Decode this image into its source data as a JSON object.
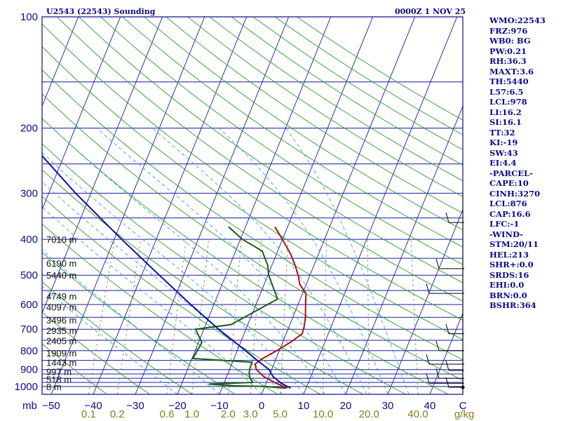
{
  "title": "U2543 (22543) Sounding",
  "datetime": "0000Z  1 NOV 25",
  "chart_data": {
    "type": "skew-t",
    "title": "U2543 (22543) Sounding",
    "xlabel": "C",
    "ylabel": "mb",
    "pressure_levels": [
      100,
      200,
      300,
      400,
      500,
      600,
      700,
      800,
      900,
      1000
    ],
    "pressure_ticks": [
      "100",
      "200",
      "300",
      "400",
      "500",
      "600",
      "700",
      "800",
      "900",
      "1000"
    ],
    "temperature_ticks": [
      -50,
      -40,
      -30,
      -20,
      -10,
      0,
      10,
      20,
      30,
      40
    ],
    "temperature_tick_labels": [
      "−50",
      "−40",
      "−30",
      "−20",
      "−10",
      "0",
      "10",
      "20",
      "30",
      "40"
    ],
    "xlim": [
      -50,
      50
    ],
    "ylim": [
      1050,
      100
    ],
    "mixing_ratio_labels": [
      {
        "text": "0.1",
        "value": 0.1
      },
      {
        "text": "0.2",
        "value": 0.2
      },
      {
        "text": "0.6",
        "value": 0.6
      },
      {
        "text": "1.0",
        "value": 1.0
      },
      {
        "text": "2.0",
        "value": 2.0
      },
      {
        "text": "3.0",
        "value": 3.0
      },
      {
        "text": "5.0",
        "value": 5.0
      },
      {
        "text": "10.0",
        "value": 10.0
      },
      {
        "text": "20.0",
        "value": 20.0
      },
      {
        "text": "40.0",
        "value": 40.0
      }
    ],
    "mixing_ratio_unit": "g/kg",
    "height_labels": [
      {
        "p": 400,
        "text": "7010 m"
      },
      {
        "p": 464,
        "text": "6190 m"
      },
      {
        "p": 500,
        "text": "5440 m"
      },
      {
        "p": 570,
        "text": "4749 m"
      },
      {
        "p": 610,
        "text": "4097 m"
      },
      {
        "p": 660,
        "text": "3496 m"
      },
      {
        "p": 705,
        "text": "2935 m"
      },
      {
        "p": 752,
        "text": "2405 m"
      },
      {
        "p": 812,
        "text": "1909 m"
      },
      {
        "p": 860,
        "text": "1443 m"
      },
      {
        "p": 910,
        "text": "997 m"
      },
      {
        "p": 955,
        "text": "518 m"
      },
      {
        "p": 1000,
        "text": "8 m"
      }
    ],
    "series": [
      {
        "name": "Temperature",
        "color": "#b01010",
        "points": [
          [
            1010,
            5.5
          ],
          [
            980,
            2.4
          ],
          [
            940,
            -1.2
          ],
          [
            900,
            -3.6
          ],
          [
            870,
            -4.5
          ],
          [
            840,
            -3.2
          ],
          [
            800,
            -0.6
          ],
          [
            760,
            1.8
          ],
          [
            720,
            3.8
          ],
          [
            690,
            3.6
          ],
          [
            650,
            3.0
          ],
          [
            600,
            1.8
          ],
          [
            560,
            0.8
          ],
          [
            530,
            -1.5
          ],
          [
            500,
            -2.8
          ],
          [
            470,
            -4.5
          ],
          [
            440,
            -6.5
          ],
          [
            400,
            -10.0
          ],
          [
            370,
            -13.0
          ]
        ]
      },
      {
        "name": "Dewpoint",
        "color": "#1a5a1a",
        "points": [
          [
            1010,
            5.2
          ],
          [
            1000,
            -0.3
          ],
          [
            995,
            -7.5
          ],
          [
            985,
            -13.5
          ],
          [
            975,
            -3.2
          ],
          [
            950,
            -4.3
          ],
          [
            920,
            -5.0
          ],
          [
            890,
            -5.3
          ],
          [
            860,
            -5.4
          ],
          [
            840,
            -19.8
          ],
          [
            760,
            -19.2
          ],
          [
            700,
            -22.0
          ],
          [
            680,
            -14.0
          ],
          [
            580,
            -5.4
          ],
          [
            500,
            -9.8
          ],
          [
            470,
            -11.0
          ],
          [
            430,
            -13.7
          ],
          [
            400,
            -19.5
          ],
          [
            370,
            -24.0
          ]
        ]
      },
      {
        "name": "Parcel",
        "color": "#10109a",
        "points": [
          [
            1010,
            6.3
          ],
          [
            980,
            3.6
          ],
          [
            940,
            1.0
          ],
          [
            900,
            -0.6
          ],
          [
            850,
            -4.3
          ],
          [
            800,
            -8.0
          ],
          [
            700,
            -16.5
          ],
          [
            600,
            -25.5
          ],
          [
            500,
            -35.8
          ],
          [
            400,
            -48.2
          ],
          [
            300,
            -63.6
          ],
          [
            200,
            -83.8
          ],
          [
            160,
            -94.5
          ],
          [
            120,
            -106.5
          ]
        ]
      }
    ],
    "wind_barbs_at_pressures": [
      360,
      480,
      560,
      720,
      800,
      870,
      905,
      950,
      980,
      1005
    ]
  },
  "indices": [
    {
      "label": "WMO:22543"
    },
    {
      "label": "FRZ:976"
    },
    {
      "label": "WB0: BG"
    },
    {
      "label": "PW:0.21"
    },
    {
      "label": "RH:36.3"
    },
    {
      "label": "MAXT:3.6"
    },
    {
      "label": "TH:5440"
    },
    {
      "label": "L57:6.5"
    },
    {
      "label": "LCL:978"
    },
    {
      "label": "LI:16.2"
    },
    {
      "label": "SI:16.1"
    },
    {
      "label": "TT:32"
    },
    {
      "label": "KI:-19"
    },
    {
      "label": "SW:43"
    },
    {
      "label": "EI:4.4"
    },
    {
      "label": "-PARCEL-"
    },
    {
      "label": "CAPE:10"
    },
    {
      "label": "CINH:3270"
    },
    {
      "label": "LCL:876"
    },
    {
      "label": "CAP:16.6"
    },
    {
      "label": "LFC:-1"
    },
    {
      "label": "-WIND-"
    },
    {
      "label": "STM:20/11"
    },
    {
      "label": "HEL:213"
    },
    {
      "label": "SHR+:0.0"
    },
    {
      "label": "SRDS:16"
    },
    {
      "label": "EHI:0.0"
    },
    {
      "label": "BRN:0.0"
    },
    {
      "label": "BSHR:364"
    }
  ],
  "colors": {
    "frame": "#0a0a8a",
    "isobar": "#1a1aa0",
    "isotherm": "#1a1aa0",
    "dry_adiabat": "#22a022",
    "moist_adiabat": "#3aa0d8",
    "mixing_ratio": "#8a7a3a",
    "text": "#0a0a8a"
  }
}
